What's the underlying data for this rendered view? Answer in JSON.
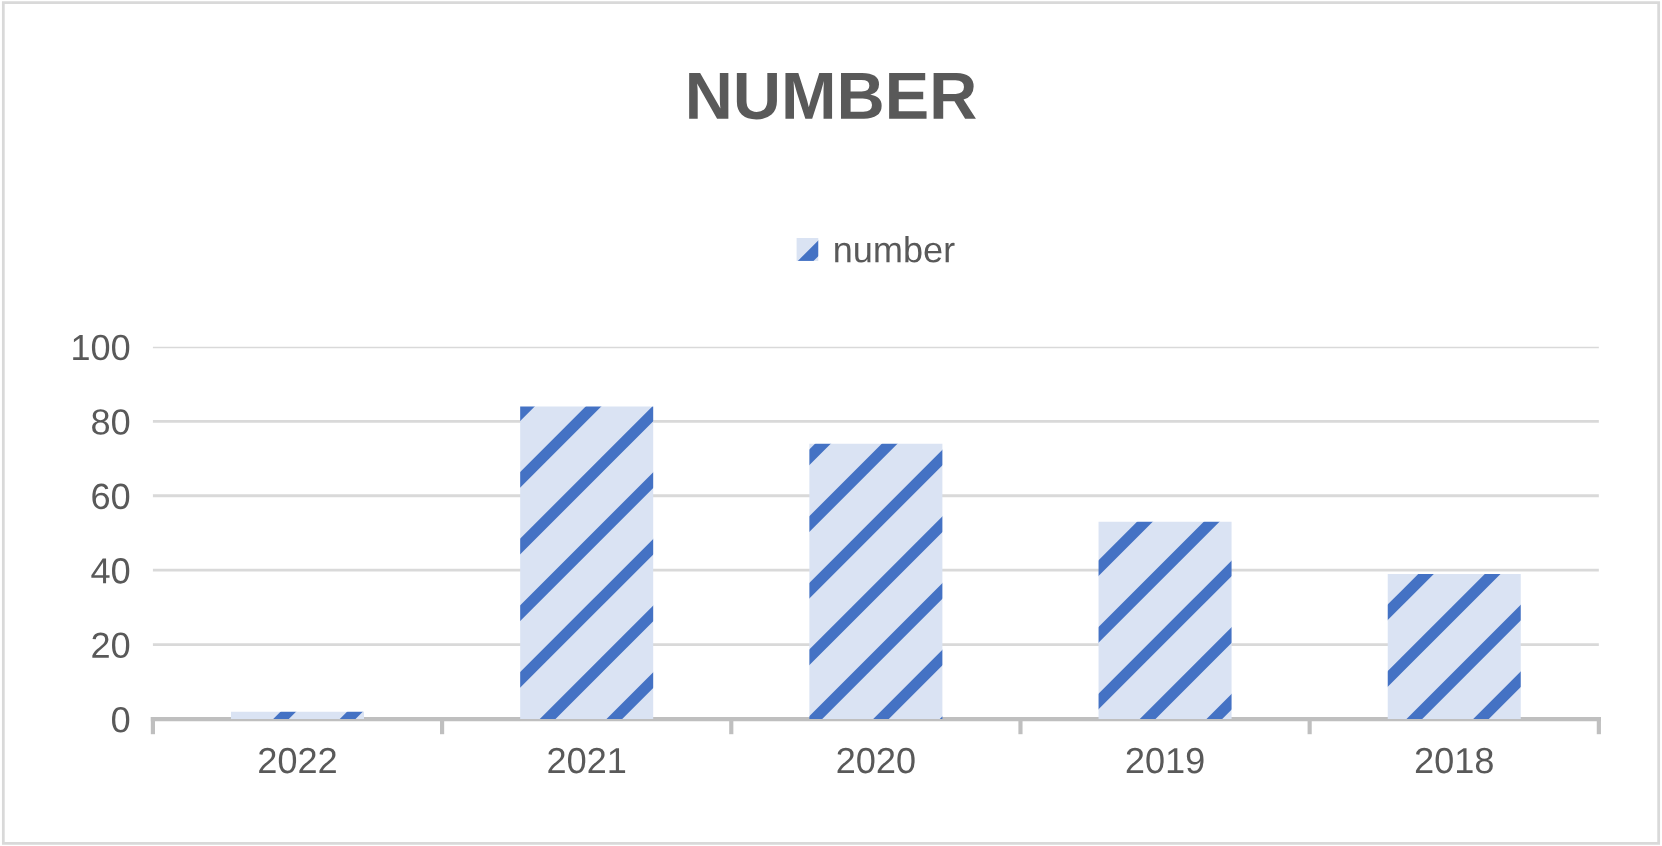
{
  "chart_data": {
    "type": "bar",
    "title": "NUMBER",
    "categories": [
      "2022",
      "2021",
      "2020",
      "2019",
      "2018"
    ],
    "series": [
      {
        "name": "number",
        "color": "#4472c4",
        "values": [
          2,
          84,
          74,
          53,
          39
        ]
      }
    ],
    "ylim": [
      0,
      100
    ],
    "yticks": [
      0,
      20,
      40,
      60,
      80,
      100
    ],
    "grid": "y",
    "legend": "top"
  }
}
